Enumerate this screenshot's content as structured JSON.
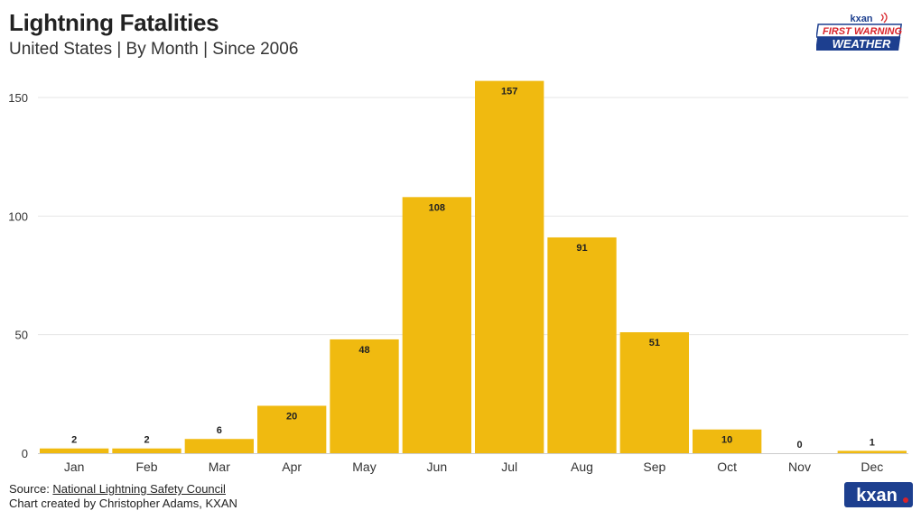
{
  "header": {
    "title": "Lightning Fatalities",
    "subtitle": "United States | By Month | Since 2006"
  },
  "branding": {
    "top_logo_text": [
      "kxan",
      "FIRST WARNING",
      "WEATHER"
    ],
    "bottom_logo_text": "kxan"
  },
  "footer": {
    "source_prefix": "Source: ",
    "source_name": "National Lightning Safety Council",
    "credit": "Chart created by Christopher Adams, KXAN"
  },
  "colors": {
    "bar": "#F0BA10",
    "grid": "#e6e6e6",
    "text": "#222222",
    "logo_navy": "#1d3f8f",
    "logo_red": "#d8232a"
  },
  "chart_data": {
    "type": "bar",
    "title": "Lightning Fatalities",
    "subtitle": "United States | By Month | Since 2006",
    "categories": [
      "Jan",
      "Feb",
      "Mar",
      "Apr",
      "May",
      "Jun",
      "Jul",
      "Aug",
      "Sep",
      "Oct",
      "Nov",
      "Dec"
    ],
    "values": [
      2,
      2,
      6,
      20,
      48,
      108,
      157,
      91,
      51,
      10,
      0,
      1
    ],
    "yticks": [
      0,
      50,
      100,
      150
    ],
    "ylim": [
      0,
      157
    ],
    "xlabel": "",
    "ylabel": "",
    "grid": true,
    "legend": "none"
  }
}
